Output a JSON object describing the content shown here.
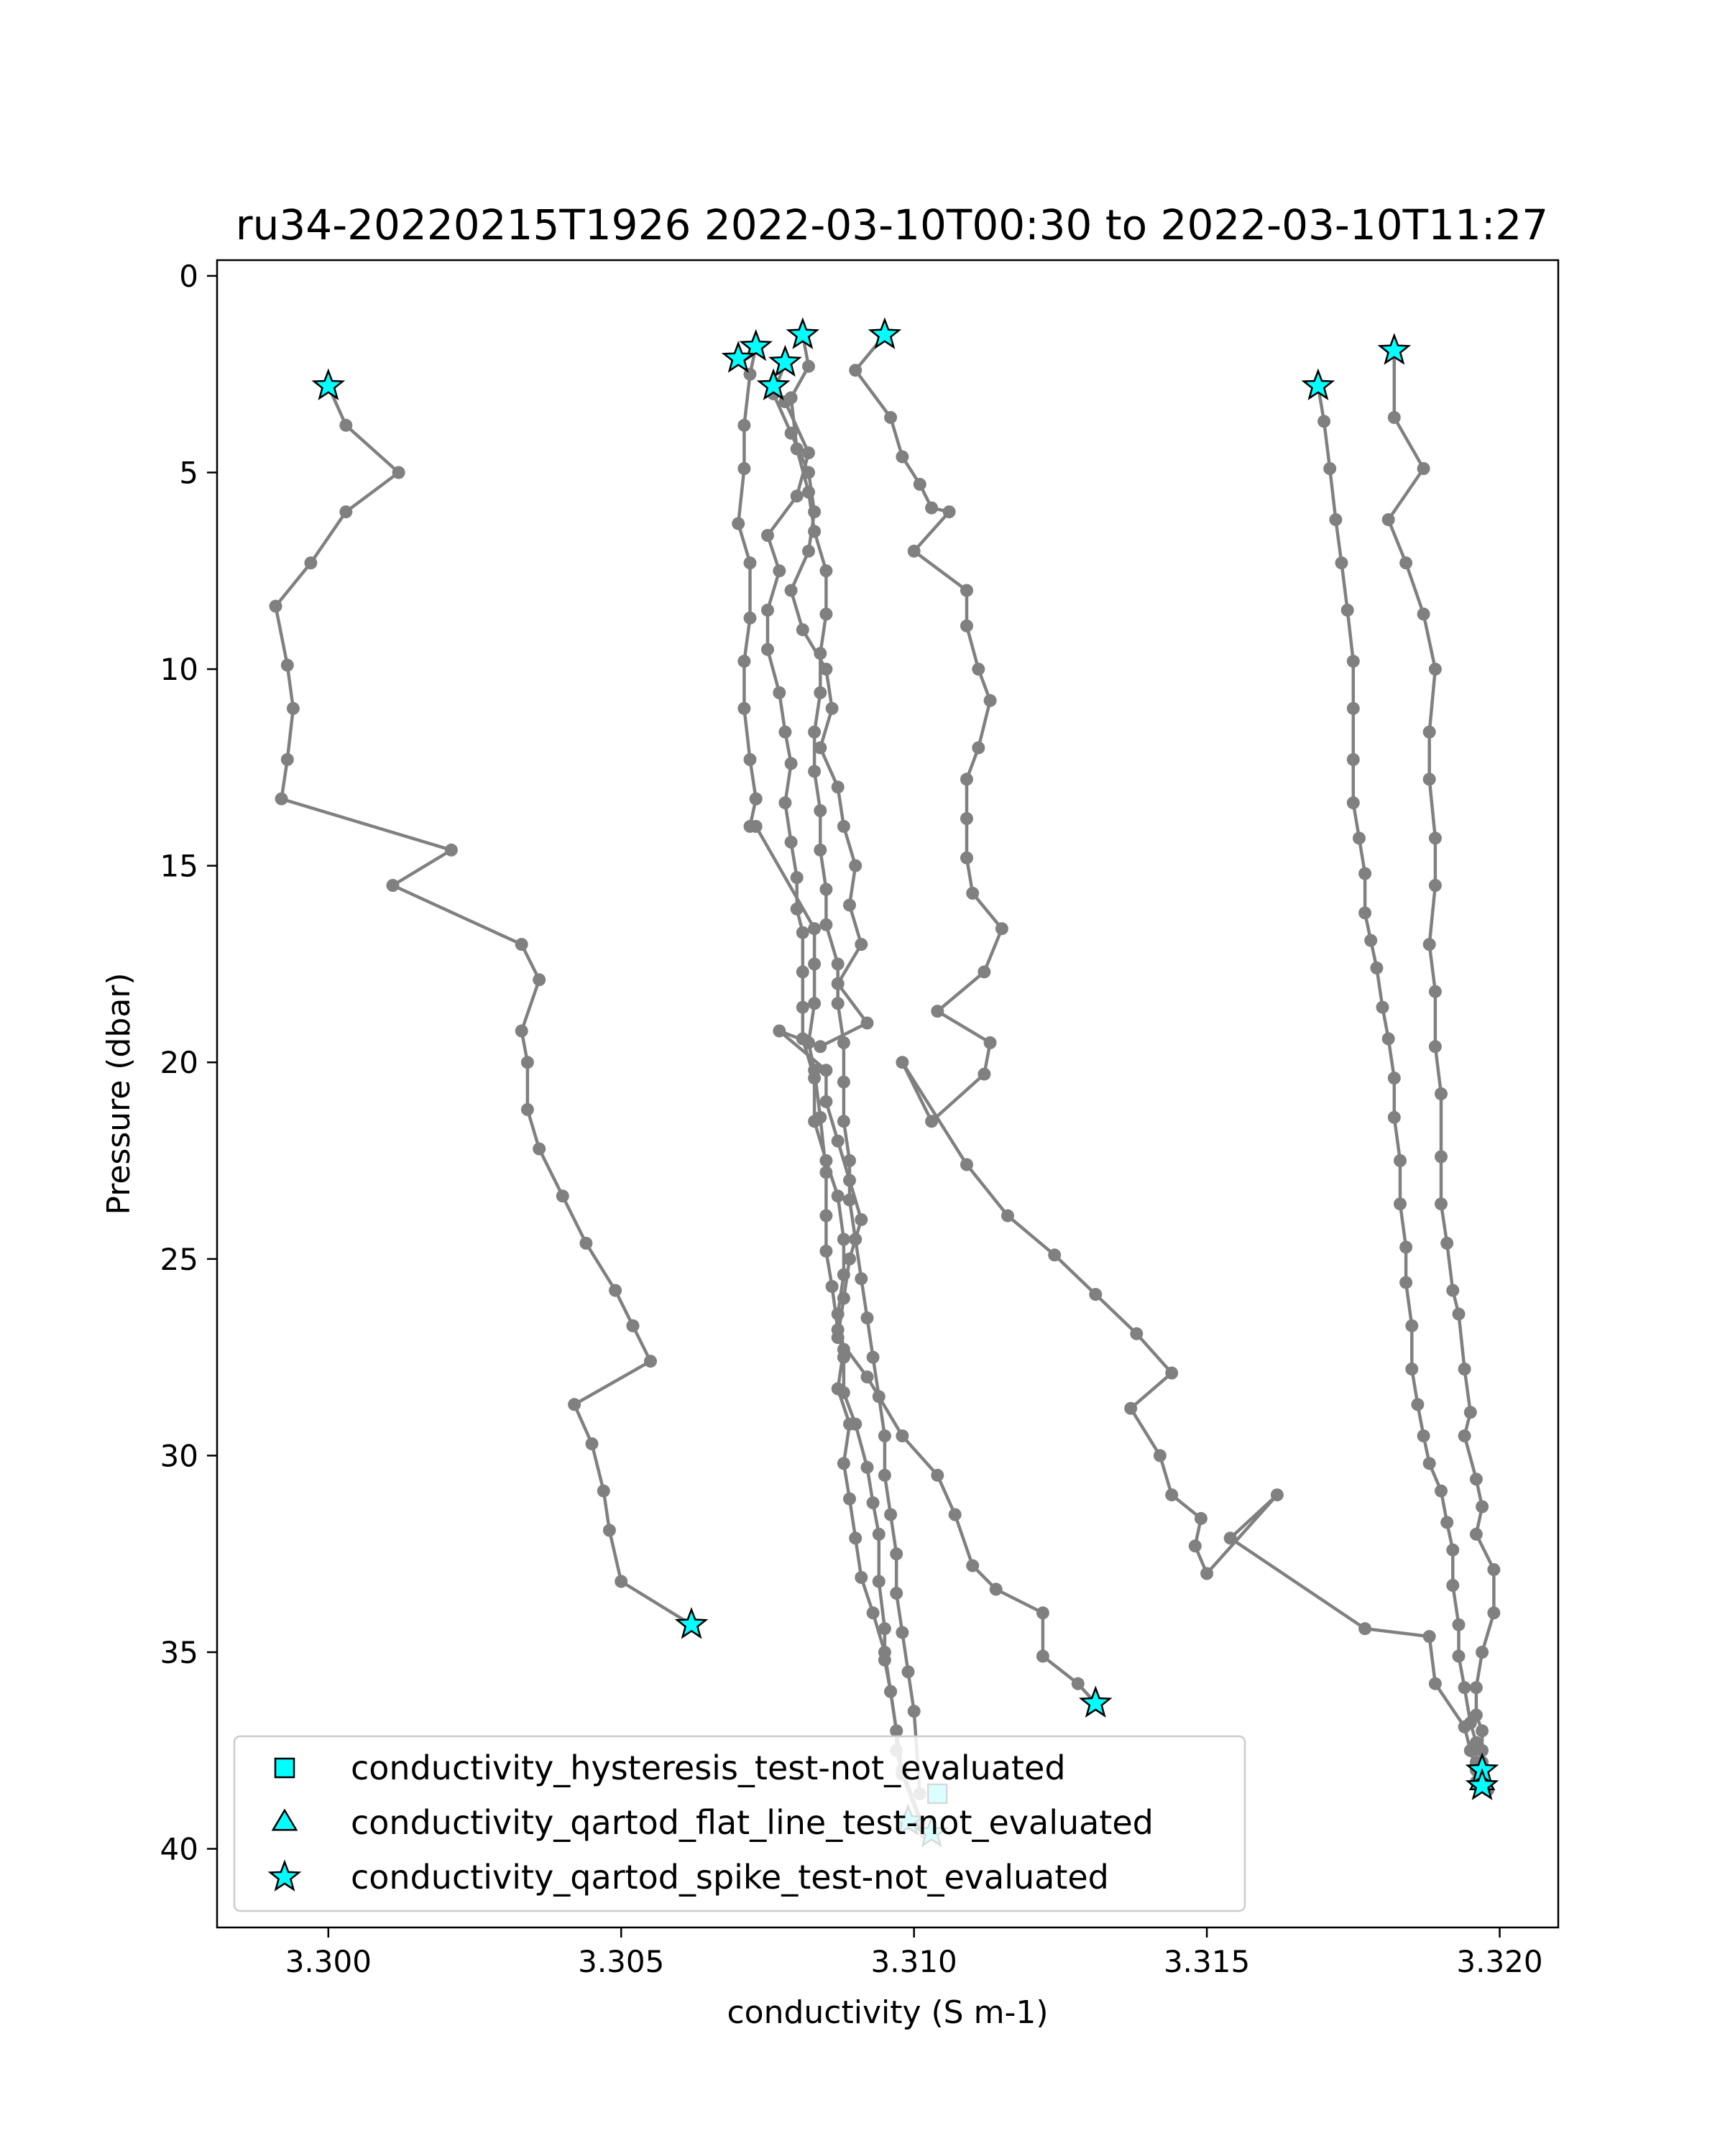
{
  "chart_data": {
    "type": "line",
    "title": "ru34-20220215T1926 2022-03-10T00:30 to 2022-03-10T11:27",
    "xlabel": "conductivity (S m-1)",
    "ylabel": "Pressure (dbar)",
    "xlim": [
      3.2981,
      3.321
    ],
    "ylim": [
      42,
      -0.4
    ],
    "y_inverted": true,
    "xticks": [
      3.3,
      3.305,
      3.31,
      3.315,
      3.32
    ],
    "xtick_labels": [
      "3.300",
      "3.305",
      "3.310",
      "3.315",
      "3.320"
    ],
    "yticks": [
      0,
      5,
      10,
      15,
      20,
      25,
      30,
      35,
      40
    ],
    "ytick_labels": [
      "0",
      "5",
      "10",
      "15",
      "20",
      "25",
      "30",
      "35",
      "40"
    ],
    "grid": false,
    "legend_position": "lower-left",
    "line_color": "#808080",
    "marker_color": "#00ffff",
    "series": [
      {
        "x": [
          3.3,
          3.3003,
          3.3012,
          3.3003,
          3.2997,
          3.2991,
          3.2993,
          3.2994,
          3.2993,
          3.2992,
          3.3021,
          3.3011,
          3.3033,
          3.3036,
          3.3033,
          3.3034,
          3.3034,
          3.3036,
          3.304,
          3.3044,
          3.3049,
          3.3052,
          3.3052,
          3.3055,
          3.3042,
          3.3045,
          3.3047,
          3.3048,
          3.305,
          3.3062
        ],
        "y": [
          2.8,
          3.8,
          5.0,
          6.0,
          7.3,
          8.4,
          9.9,
          11.0,
          12.3,
          13.3,
          14.6,
          15.5,
          17.0,
          17.9,
          19.2,
          20.0,
          21.2,
          22.2,
          23.4,
          24.6,
          25.8,
          26.7,
          26.7,
          27.6,
          28.7,
          29.7,
          30.9,
          31.9,
          33.2,
          34.3
        ],
        "markers": {
          "spike": [
            0,
            29
          ]
        }
      },
      {
        "x": [
          3.3073,
          3.3072,
          3.3071,
          3.3071,
          3.307,
          3.3072,
          3.3072,
          3.3071,
          3.3071,
          3.3072,
          3.3073,
          3.3073,
          3.3072,
          3.3073,
          3.3083,
          3.3083,
          3.3083,
          3.3082,
          3.3083,
          3.3084,
          3.3085,
          3.3085,
          3.3085,
          3.3086,
          3.3087,
          3.3088,
          3.3088,
          3.309,
          3.3092,
          3.3093,
          3.3094,
          3.3094,
          3.3095,
          3.3095,
          3.3096,
          3.3097,
          3.3097,
          3.3098,
          3.3101
        ],
        "y": [
          1.8,
          2.5,
          3.8,
          4.9,
          6.3,
          7.3,
          8.7,
          9.8,
          11.0,
          12.3,
          13.3,
          13.3,
          14.0,
          14.0,
          16.6,
          17.5,
          18.5,
          19.5,
          20.2,
          21.4,
          22.8,
          23.9,
          24.8,
          25.7,
          26.8,
          27.5,
          28.4,
          29.2,
          30.3,
          31.2,
          32.0,
          33.2,
          34.4,
          35.2,
          36.0,
          37.0,
          37.5,
          38.1,
          39.3
        ],
        "markers": {
          "spike": [
            0
          ],
          "flat_line": [
            38
          ],
          "spike_end": [
            38
          ]
        }
      },
      {
        "x": [
          3.3076,
          3.3078,
          3.3082,
          3.308,
          3.3075,
          3.3077,
          3.3075,
          3.3075,
          3.3077,
          3.3078,
          3.3079,
          3.3078,
          3.3079,
          3.308,
          3.308,
          3.3081,
          3.3081,
          3.3081,
          3.3081,
          3.3083,
          3.3083,
          3.3085,
          3.3087,
          3.3088,
          3.3088,
          3.3087,
          3.3088,
          3.3087,
          3.3089,
          3.3088,
          3.3089,
          3.309,
          3.3091,
          3.3093,
          3.3095,
          3.3096,
          3.3097,
          3.3098,
          3.3102
        ],
        "y": [
          2.8,
          3.2,
          4.5,
          5.6,
          6.6,
          7.5,
          8.5,
          9.5,
          10.6,
          11.6,
          12.4,
          13.4,
          14.4,
          15.3,
          16.1,
          16.7,
          17.7,
          18.6,
          19.4,
          20.4,
          21.5,
          22.5,
          23.4,
          24.5,
          25.4,
          26.4,
          27.3,
          28.3,
          29.2,
          30.2,
          31.1,
          32.1,
          33.1,
          34.0,
          35.0,
          36.0,
          37.0,
          38.0,
          39.6
        ],
        "markers": {
          "spike": [
            0,
            38
          ]
        }
      },
      {
        "x": [
          3.3081,
          3.3082,
          3.3079,
          3.308,
          3.3082,
          3.3083,
          3.3085,
          3.3085,
          3.3084,
          3.3084,
          3.3083,
          3.3083,
          3.3084,
          3.3084,
          3.3085,
          3.3085,
          3.3087,
          3.3087,
          3.3088,
          3.3088,
          3.3088,
          3.3089,
          3.3089,
          3.309,
          3.3091,
          3.3092,
          3.3093,
          3.3094,
          3.3095,
          3.3095,
          3.3096,
          3.3097,
          3.3097,
          3.3098,
          3.3099,
          3.31,
          3.3101
        ],
        "y": [
          1.5,
          2.3,
          3.1,
          4.4,
          5.5,
          6.5,
          7.5,
          8.6,
          9.6,
          10.6,
          11.6,
          12.6,
          13.6,
          14.6,
          15.6,
          16.5,
          17.5,
          18.5,
          19.5,
          20.5,
          21.5,
          22.5,
          23.5,
          24.5,
          25.5,
          26.5,
          27.5,
          28.5,
          29.5,
          30.5,
          31.5,
          32.5,
          33.5,
          34.5,
          35.5,
          36.5,
          38.6
        ],
        "markers": {
          "spike": [
            0
          ],
          "hysteresis": [
            36
          ]
        }
      },
      {
        "x": [
          3.3078,
          3.3076,
          3.3079,
          3.3082,
          3.3083,
          3.3082,
          3.3079,
          3.3081,
          3.3085,
          3.3086,
          3.3084,
          3.3087,
          3.3088,
          3.309,
          3.3089,
          3.3091,
          3.3087,
          3.3092,
          3.3084,
          3.3077,
          3.3085,
          3.3085,
          3.3087,
          3.3089,
          3.3091,
          3.3089,
          3.3088,
          3.3087,
          3.3092,
          3.3098,
          3.3104,
          3.3107,
          3.311,
          3.3114,
          3.3122,
          3.3122,
          3.3128,
          3.3131
        ],
        "y": [
          2.2,
          3.0,
          4.0,
          5.0,
          6.0,
          7.0,
          8.0,
          9.0,
          10.0,
          11.0,
          12.0,
          13.0,
          14.0,
          15.0,
          16.0,
          17.0,
          18.0,
          19.0,
          19.6,
          19.2,
          20.2,
          21.0,
          22.0,
          23.0,
          24.0,
          25.0,
          26.0,
          27.0,
          28.0,
          29.5,
          30.5,
          31.5,
          32.8,
          33.4,
          34.0,
          35.1,
          35.8,
          36.3
        ],
        "markers": {
          "spike": [
            0,
            37
          ]
        }
      },
      {
        "x": [
          3.3095,
          3.309,
          3.3096,
          3.3098,
          3.3101,
          3.3103,
          3.3106,
          3.31,
          3.3109,
          3.3109,
          3.3111,
          3.3113,
          3.3111,
          3.3109,
          3.3109,
          3.3109,
          3.311,
          3.3115,
          3.3112,
          3.3104,
          3.3113,
          3.3112,
          3.3103,
          3.3098,
          3.3109,
          3.3116,
          3.3124,
          3.3131,
          3.3138,
          3.3144,
          3.3137,
          3.3142,
          3.3144,
          3.3149,
          3.3148,
          3.315,
          3.3162,
          3.3154,
          3.3177,
          3.3188,
          3.3189,
          3.3194,
          3.3195,
          3.3196,
          3.3197
        ],
        "y": [
          1.5,
          2.4,
          3.6,
          4.6,
          5.3,
          5.9,
          6.0,
          7.0,
          8.0,
          8.9,
          10.0,
          10.8,
          12.0,
          12.8,
          13.8,
          14.8,
          15.7,
          16.6,
          17.7,
          18.7,
          19.5,
          20.3,
          21.5,
          20.0,
          22.6,
          23.9,
          24.9,
          25.9,
          26.9,
          27.9,
          28.8,
          30.0,
          31.0,
          31.6,
          32.3,
          33.0,
          31.0,
          32.1,
          34.4,
          34.6,
          35.8,
          36.9,
          37.5,
          38.0,
          38.3
        ],
        "markers": {
          "spike": [
            0,
            44
          ]
        }
      },
      {
        "x": [
          3.3169,
          3.317,
          3.3171,
          3.3172,
          3.3173,
          3.3174,
          3.3175,
          3.3175,
          3.3175,
          3.3175,
          3.3176,
          3.3177,
          3.3177,
          3.3178,
          3.3179,
          3.318,
          3.3181,
          3.3182,
          3.3182,
          3.3183,
          3.3183,
          3.3184,
          3.3184,
          3.3185,
          3.3185,
          3.3186,
          3.3187,
          3.3188,
          3.319,
          3.3191,
          3.3192,
          3.3192,
          3.3193,
          3.3193,
          3.3194,
          3.3195,
          3.3196,
          3.3196,
          3.3197
        ],
        "y": [
          2.8,
          3.7,
          4.9,
          6.2,
          7.3,
          8.5,
          9.8,
          11.0,
          12.3,
          13.4,
          14.3,
          15.2,
          16.2,
          16.9,
          17.6,
          18.6,
          19.4,
          20.4,
          21.4,
          22.5,
          23.6,
          24.7,
          25.6,
          26.7,
          27.8,
          28.7,
          29.5,
          30.2,
          30.9,
          31.7,
          32.4,
          33.3,
          34.3,
          35.1,
          35.9,
          36.8,
          37.3,
          37.8,
          38.1
        ],
        "markers": {
          "spike": [
            0
          ]
        }
      },
      {
        "x": [
          3.3182,
          3.3182,
          3.3187,
          3.3181,
          3.3184,
          3.3187,
          3.3189,
          3.3188,
          3.3188,
          3.3189,
          3.3189,
          3.3188,
          3.3189,
          3.3189,
          3.319,
          3.319,
          3.319,
          3.3191,
          3.3192,
          3.3193,
          3.3194,
          3.3195,
          3.3194,
          3.3196,
          3.3197,
          3.3196,
          3.3199,
          3.3199,
          3.3197,
          3.3196,
          3.3196,
          3.3197,
          3.3197,
          3.3197,
          3.3197,
          3.3196,
          3.3197,
          3.3198
        ],
        "y": [
          1.9,
          3.6,
          4.9,
          6.2,
          7.3,
          8.6,
          10.0,
          11.6,
          12.8,
          14.3,
          15.5,
          17.0,
          18.2,
          19.6,
          20.8,
          22.4,
          23.6,
          24.6,
          25.8,
          26.4,
          27.8,
          28.9,
          29.5,
          30.6,
          31.3,
          32.0,
          32.9,
          34.0,
          35.0,
          35.9,
          36.6,
          37.0,
          37.5,
          37.8,
          38.0,
          38.3,
          38.4,
          38.5
        ],
        "markers": {
          "spike": [
            0,
            37
          ]
        }
      }
    ],
    "marked_points": {
      "hysteresis": [
        {
          "x": 3.3104,
          "y": 38.6
        }
      ],
      "flat_line": [
        {
          "x": 3.3099,
          "y": 39.3
        },
        {
          "x": 3.3197,
          "y": 38.3
        }
      ],
      "spike": [
        {
          "x": 3.3,
          "y": 2.8
        },
        {
          "x": 3.3062,
          "y": 34.3
        },
        {
          "x": 3.3073,
          "y": 1.8
        },
        {
          "x": 3.307,
          "y": 2.1
        },
        {
          "x": 3.3076,
          "y": 2.8
        },
        {
          "x": 3.3081,
          "y": 1.5
        },
        {
          "x": 3.3078,
          "y": 2.2
        },
        {
          "x": 3.3095,
          "y": 1.5
        },
        {
          "x": 3.3169,
          "y": 2.8
        },
        {
          "x": 3.3182,
          "y": 1.9
        },
        {
          "x": 3.3131,
          "y": 36.3
        },
        {
          "x": 3.3099,
          "y": 39.3
        },
        {
          "x": 3.3103,
          "y": 39.6
        },
        {
          "x": 3.3197,
          "y": 38.0
        },
        {
          "x": 3.3197,
          "y": 38.4
        }
      ]
    },
    "legend": [
      {
        "marker": "square",
        "label": "conductivity_hysteresis_test-not_evaluated"
      },
      {
        "marker": "triangle",
        "label": "conductivity_qartod_flat_line_test-not_evaluated"
      },
      {
        "marker": "star",
        "label": "conductivity_qartod_spike_test-not_evaluated"
      }
    ]
  }
}
